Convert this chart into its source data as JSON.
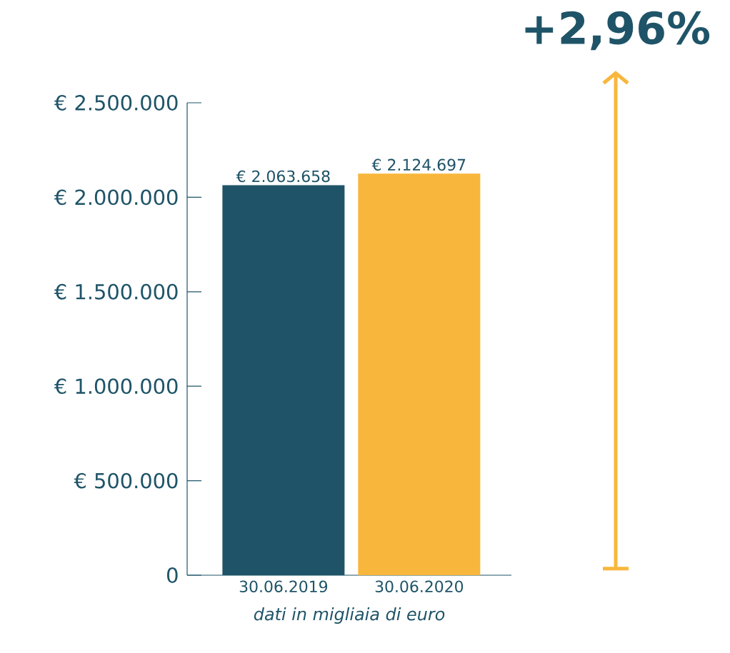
{
  "chart_data": {
    "type": "bar",
    "categories": [
      "30.06.2019",
      "30.06.2020"
    ],
    "values": [
      2063658,
      2124697
    ],
    "colors": [
      "#1f5468",
      "#f8b73c"
    ],
    "value_labels": [
      "€ 2.063.658",
      "€ 2.124.697"
    ],
    "ylim": [
      0,
      2500000
    ],
    "yticks": [
      0,
      {
        "value": 500000,
        "label": "€ 500.000"
      },
      {
        "value": 1000000,
        "label": "€ 1.000.000"
      },
      {
        "value": 1500000,
        "label": "€ 1.500.000"
      },
      {
        "value": 2000000,
        "label": "€ 2.000.000"
      },
      {
        "value": 2500000,
        "label": "€ 2.500.000"
      }
    ],
    "xlabel": "*dati in migliaia di euro*",
    "annotations": [
      "+2,96%"
    ]
  }
}
